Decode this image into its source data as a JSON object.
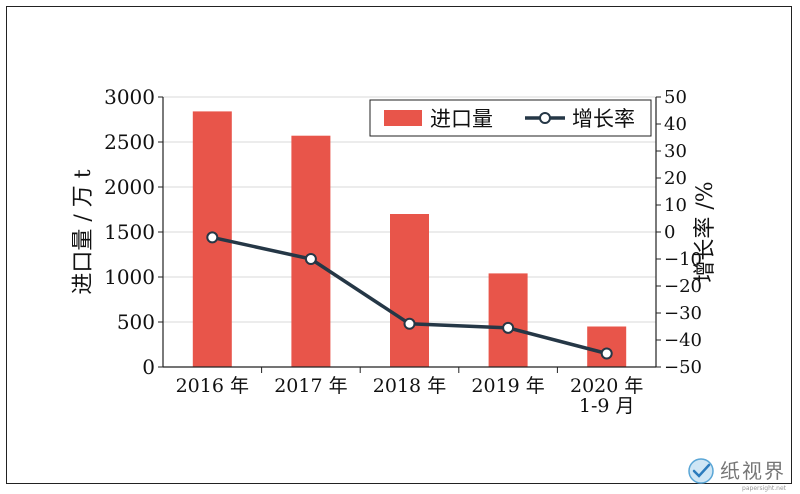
{
  "chart_data": {
    "type": "bar+line",
    "categories": [
      [
        "2016 年"
      ],
      [
        "2017 年"
      ],
      [
        "2018 年"
      ],
      [
        "2019 年"
      ],
      [
        "2020 年",
        "1-9 月"
      ]
    ],
    "series": [
      {
        "name": "进口量",
        "type": "bar",
        "axis": "left",
        "values": [
          2840,
          2570,
          1700,
          1040,
          450
        ]
      },
      {
        "name": "增长率",
        "type": "line",
        "axis": "right",
        "values": [
          -2,
          -10,
          -34,
          -35.5,
          -45
        ]
      }
    ],
    "ylabel_left": "进口量 / 万 t",
    "ylabel_right": "增长率 /%",
    "ylim_left": [
      0,
      3000
    ],
    "ylim_right": [
      -50,
      50
    ],
    "yticks_left": [
      0,
      500,
      1000,
      1500,
      2000,
      2500,
      3000
    ],
    "yticks_right": [
      -50,
      -40,
      -30,
      -20,
      -10,
      0,
      10,
      20,
      30,
      40,
      50
    ],
    "ytick_labels_right": [
      "−50",
      "−40",
      "−30",
      "−20",
      "−10",
      "0",
      "10",
      "20",
      "30",
      "40",
      "50"
    ],
    "grid": true,
    "legend_position": "top-right",
    "colors": {
      "bar": "#e8554a",
      "line": "#253746"
    }
  },
  "watermark": {
    "text": "纸视界",
    "sub": "papersight.net",
    "icon": "globe-check-icon"
  }
}
